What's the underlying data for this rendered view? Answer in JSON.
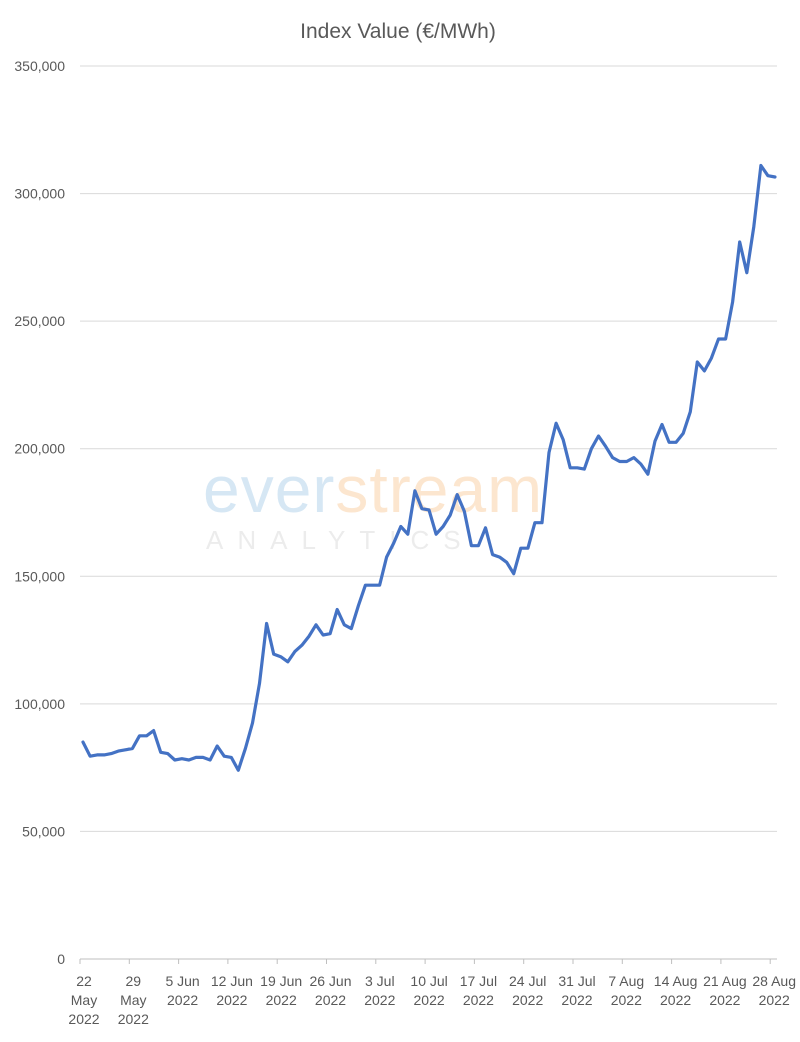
{
  "chart_data": {
    "type": "line",
    "title": "Index Value (€/MWh)",
    "xlabel": "",
    "ylabel": "",
    "ylim": [
      0,
      350000
    ],
    "y_ticks": [
      "0",
      "50,000",
      "100,000",
      "150,000",
      "200,000",
      "250,000",
      "300,000",
      "350,000"
    ],
    "x_ticks": [
      [
        "22",
        "May",
        "2022"
      ],
      [
        "29",
        "May",
        "2022"
      ],
      [
        "5 Jun",
        "2022"
      ],
      [
        "12 Jun",
        "2022"
      ],
      [
        "19 Jun",
        "2022"
      ],
      [
        "26 Jun",
        "2022"
      ],
      [
        "3 Jul",
        "2022"
      ],
      [
        "10 Jul",
        "2022"
      ],
      [
        "17 Jul",
        "2022"
      ],
      [
        "24 Jul",
        "2022"
      ],
      [
        "31 Jul",
        "2022"
      ],
      [
        "7 Aug",
        "2022"
      ],
      [
        "14 Aug",
        "2022"
      ],
      [
        "21 Aug",
        "2022"
      ],
      [
        "28 Aug",
        "2022"
      ]
    ],
    "grid": true,
    "line_color": "#4472c4",
    "series": [
      {
        "values": [
          85000,
          79500,
          80000,
          80000,
          80500,
          81500,
          82000,
          82500,
          87500,
          87500,
          89500,
          81000,
          80500,
          78000,
          78500,
          78000,
          79000,
          79000,
          78000,
          83500,
          79500,
          79000,
          74000,
          82500,
          92500,
          108000,
          131500,
          119500,
          118500,
          116500,
          120500,
          123000,
          126500,
          131000,
          127000,
          127500,
          137000,
          131000,
          129500,
          138500,
          146500,
          146500,
          146500,
          157500,
          163000,
          169500,
          166500,
          183500,
          176500,
          176000,
          166500,
          169500,
          174000,
          182000,
          175500,
          162000,
          162000,
          169000,
          158500,
          157500,
          155500,
          151000,
          161000,
          161000,
          171000,
          171000,
          198500,
          210000,
          203500,
          192500,
          192500,
          192000,
          200000,
          205000,
          201000,
          196500,
          195000,
          195000,
          196500,
          194000,
          190000,
          203000,
          209500,
          202500,
          202500,
          206000,
          214500,
          234000,
          230500,
          235500,
          243000,
          243000,
          257500,
          281000,
          269000,
          287000,
          311000,
          307000,
          306500
        ]
      }
    ]
  },
  "watermark": {
    "brand_part1": "ever",
    "brand_part2": "stream",
    "subtitle": "ANALYTICS"
  }
}
